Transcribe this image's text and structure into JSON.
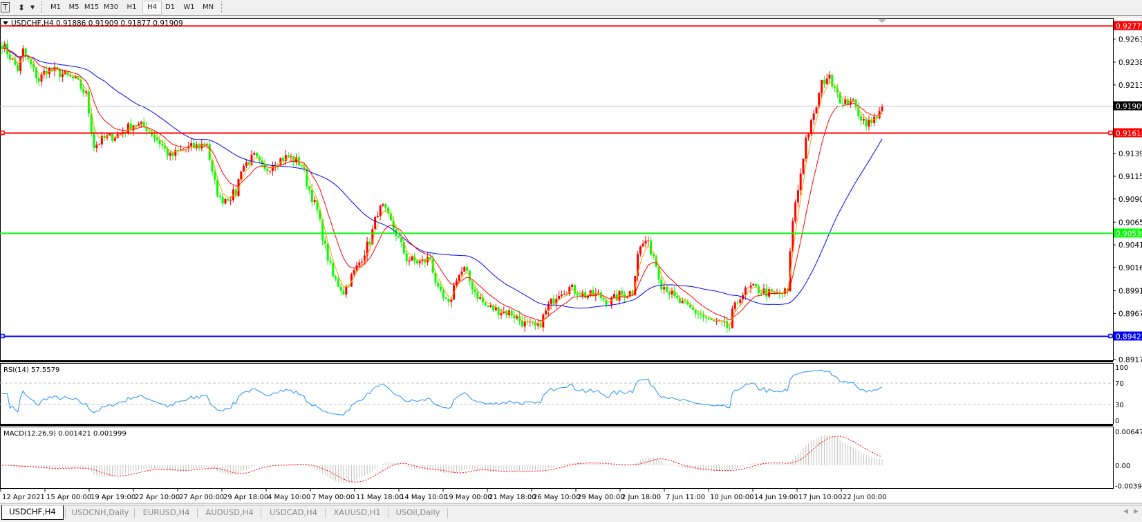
{
  "toolbar": {
    "icons": [
      "text-tool-icon",
      "objects-tool-icon",
      "dropdown-arrow-icon"
    ],
    "text_tool_glyph": "T",
    "timeframes": [
      "M1",
      "M5",
      "M15",
      "M30",
      "H1",
      "H4",
      "D1",
      "W1",
      "MN"
    ],
    "active_timeframe": "H4"
  },
  "chart": {
    "title": "USDCHF,H4  0.91886 0.91909 0.91877 0.91909",
    "symbol": "USDCHF",
    "timeframe": "H4",
    "ohlc": {
      "open": 0.91886,
      "high": 0.91909,
      "low": 0.91877,
      "close": 0.91909
    },
    "colors": {
      "bull_candle": "#ff0000",
      "bear_candle": "#00ff00",
      "ma_fast": "#ffa500",
      "ma_mid": "#ff0000",
      "ma_slow": "#0000ff",
      "bid_line": "#c0c0c0"
    }
  },
  "chart_data": [
    {
      "type": "candlestick",
      "ylim": [
        0.89175,
        0.92775
      ],
      "price_ticks": [
        "0.92630",
        "0.92380",
        "0.92135",
        "0.91395",
        "0.91150",
        "0.90905",
        "0.90655",
        "0.90410",
        "0.90165",
        "0.89915",
        "0.89670",
        "0.89175"
      ],
      "horizontal_lines": [
        {
          "price": "0.92775",
          "color": "#ff0000",
          "selected": false
        },
        {
          "price": "0.91618",
          "color": "#ff0000",
          "selected": true
        },
        {
          "price": "0.90539",
          "color": "#00ff00",
          "selected": false
        },
        {
          "price": "0.89427",
          "color": "#0000ff",
          "selected": true
        }
      ],
      "current_price": "0.91909",
      "close_path": [
        [
          0,
          0.92578
        ],
        [
          6,
          0.92303
        ],
        [
          8,
          0.925
        ],
        [
          14,
          0.92185
        ],
        [
          17,
          0.92303
        ],
        [
          22,
          0.92264
        ],
        [
          28,
          0.92185
        ],
        [
          32,
          0.92028
        ],
        [
          35,
          0.91478
        ],
        [
          39,
          0.91557
        ],
        [
          44,
          0.91596
        ],
        [
          50,
          0.91714
        ],
        [
          55,
          0.91675
        ],
        [
          60,
          0.91517
        ],
        [
          64,
          0.9136
        ],
        [
          69,
          0.91439
        ],
        [
          75,
          0.91478
        ],
        [
          78,
          0.91517
        ],
        [
          80,
          0.91164
        ],
        [
          83,
          0.90889
        ],
        [
          89,
          0.90967
        ],
        [
          91,
          0.91242
        ],
        [
          96,
          0.9136
        ],
        [
          100,
          0.91203
        ],
        [
          104,
          0.91321
        ],
        [
          109,
          0.9136
        ],
        [
          114,
          0.91282
        ],
        [
          116,
          0.91085
        ],
        [
          120,
          0.90771
        ],
        [
          123,
          0.90378
        ],
        [
          126,
          0.90063
        ],
        [
          130,
          0.89906
        ],
        [
          136,
          0.9022
        ],
        [
          140,
          0.90456
        ],
        [
          143,
          0.90771
        ],
        [
          145,
          0.9081
        ],
        [
          150,
          0.90535
        ],
        [
          154,
          0.9026
        ],
        [
          159,
          0.9022
        ],
        [
          163,
          0.9026
        ],
        [
          166,
          0.89906
        ],
        [
          170,
          0.89749
        ],
        [
          173,
          0.90063
        ],
        [
          176,
          0.90142
        ],
        [
          180,
          0.89906
        ],
        [
          184,
          0.89749
        ],
        [
          188,
          0.8971
        ],
        [
          194,
          0.8967
        ],
        [
          199,
          0.89552
        ],
        [
          204,
          0.89513
        ],
        [
          208,
          0.89749
        ],
        [
          212,
          0.89906
        ],
        [
          216,
          0.89945
        ],
        [
          222,
          0.89867
        ],
        [
          227,
          0.89867
        ],
        [
          231,
          0.89788
        ],
        [
          235,
          0.89867
        ],
        [
          240,
          0.89906
        ],
        [
          242,
          0.90338
        ],
        [
          245,
          0.90456
        ],
        [
          248,
          0.90299
        ],
        [
          251,
          0.89985
        ],
        [
          253,
          0.89945
        ],
        [
          256,
          0.89827
        ],
        [
          260,
          0.89749
        ],
        [
          265,
          0.8967
        ],
        [
          269,
          0.89592
        ],
        [
          273,
          0.89552
        ],
        [
          277,
          0.89513
        ],
        [
          278,
          0.8967
        ],
        [
          281,
          0.89867
        ],
        [
          285,
          0.89945
        ],
        [
          290,
          0.89906
        ],
        [
          294,
          0.89867
        ],
        [
          299,
          0.89906
        ],
        [
          301,
          0.90692
        ],
        [
          303,
          0.91006
        ],
        [
          306,
          0.91557
        ],
        [
          309,
          0.91792
        ],
        [
          312,
          0.92146
        ],
        [
          314,
          0.92225
        ],
        [
          317,
          0.92146
        ],
        [
          320,
          0.9191
        ],
        [
          323,
          0.91989
        ],
        [
          325,
          0.91871
        ],
        [
          328,
          0.91753
        ],
        [
          331,
          0.91714
        ],
        [
          334,
          0.91871
        ],
        [
          335,
          0.91909
        ]
      ]
    },
    {
      "type": "line",
      "title": "RSI(14) 57.5579",
      "ylim": [
        0,
        100
      ],
      "ticks": [
        "100",
        "70",
        "30",
        "0"
      ],
      "levels": [
        70,
        30
      ],
      "color": "#1e90ff"
    },
    {
      "type": "bar",
      "title": "MACD(12,26,9) 0.001421 0.001999",
      "ylim": [
        -0.003916,
        0.00647
      ],
      "ticks": [
        "0.00647",
        "0.00",
        "-0.003916"
      ],
      "histogram_color": "#c0c0c0",
      "signal_color": "#ff0000"
    }
  ],
  "time_axis": [
    "12 Apr 2021",
    "15 Apr 00:00",
    "19 Apr 19:00",
    "22 Apr 10:00",
    "27 Apr 00:00",
    "29 Apr 18:00",
    "4 May 10:00",
    "7 May 00:00",
    "11 May 18:00",
    "14 May 10:00",
    "19 May 00:00",
    "21 May 18:00",
    "26 May 10:00",
    "29 May 00:00",
    "2 Jun 18:00",
    "7 Jun 11:00",
    "10 Jun 00:00",
    "14 Jun 19:00",
    "17 Jun 10:00",
    "22 Jun 00:00"
  ],
  "tabs": [
    {
      "label": "USDCHF,H4",
      "active": true
    },
    {
      "label": "USDCNH,Daily",
      "active": false
    },
    {
      "label": "EURUSD,H4",
      "active": false
    },
    {
      "label": "AUDUSD,H4",
      "active": false
    },
    {
      "label": "USDCAD,H4",
      "active": false
    },
    {
      "label": "XAUUSD,H1",
      "active": false
    },
    {
      "label": "USOil,Daily",
      "active": false
    }
  ]
}
